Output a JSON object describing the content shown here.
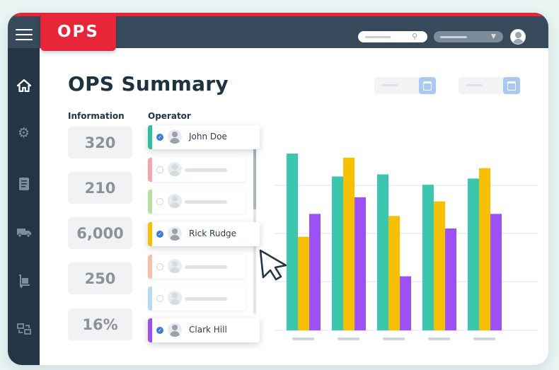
{
  "app": {
    "logo_text": "OPS"
  },
  "topbar": {
    "menu_icon": "hamburger-icon",
    "search_icon": "search-icon",
    "dropdown_icon": "chevron-down-icon",
    "avatar_icon": "user-avatar-icon"
  },
  "sidebar": {
    "items": [
      {
        "icon": "home-icon",
        "active": true
      },
      {
        "icon": "gear-icon",
        "active": false
      },
      {
        "icon": "document-icon",
        "active": false
      },
      {
        "icon": "truck-icon",
        "active": false
      },
      {
        "icon": "hand-truck-icon",
        "active": false
      },
      {
        "icon": "transfer-icon",
        "active": false
      }
    ]
  },
  "page": {
    "title": "OPS Summary"
  },
  "sections": {
    "information_label": "Information",
    "operator_label": "Operator"
  },
  "information": [
    "320",
    "210",
    "6,000",
    "250",
    "16%"
  ],
  "operators": [
    {
      "name": "John Doe",
      "selected": true,
      "accent": "#2bbfa4"
    },
    {
      "name": "",
      "selected": false,
      "accent": "#f3a6ad"
    },
    {
      "name": "",
      "selected": false,
      "accent": "#b9e0a5"
    },
    {
      "name": "Rick Rudge",
      "selected": true,
      "accent": "#f5c000"
    },
    {
      "name": "",
      "selected": false,
      "accent": "#f8c1a5"
    },
    {
      "name": "",
      "selected": false,
      "accent": "#b6dcf2"
    },
    {
      "name": "Clark Hill",
      "selected": true,
      "accent": "#9b51f3"
    }
  ],
  "colors": {
    "brand_red": "#e8263a",
    "topbar": "#364a5c",
    "sidebar": "#243645",
    "teal": "#3cc6ad",
    "yellow": "#f5c000",
    "purple": "#9b51f3"
  },
  "chart_data": {
    "type": "bar",
    "categories": [
      "",
      "",
      "",
      "",
      ""
    ],
    "series": [
      {
        "color": "#3cc6ad",
        "values": [
          85,
          74,
          75,
          70,
          73
        ]
      },
      {
        "color": "#f5c000",
        "values": [
          45,
          83,
          55,
          62,
          78
        ]
      },
      {
        "color": "#9b51f3",
        "values": [
          56,
          64,
          26,
          49,
          56
        ]
      }
    ],
    "ylim": [
      0,
      100
    ],
    "grid": true,
    "legend": "none"
  }
}
